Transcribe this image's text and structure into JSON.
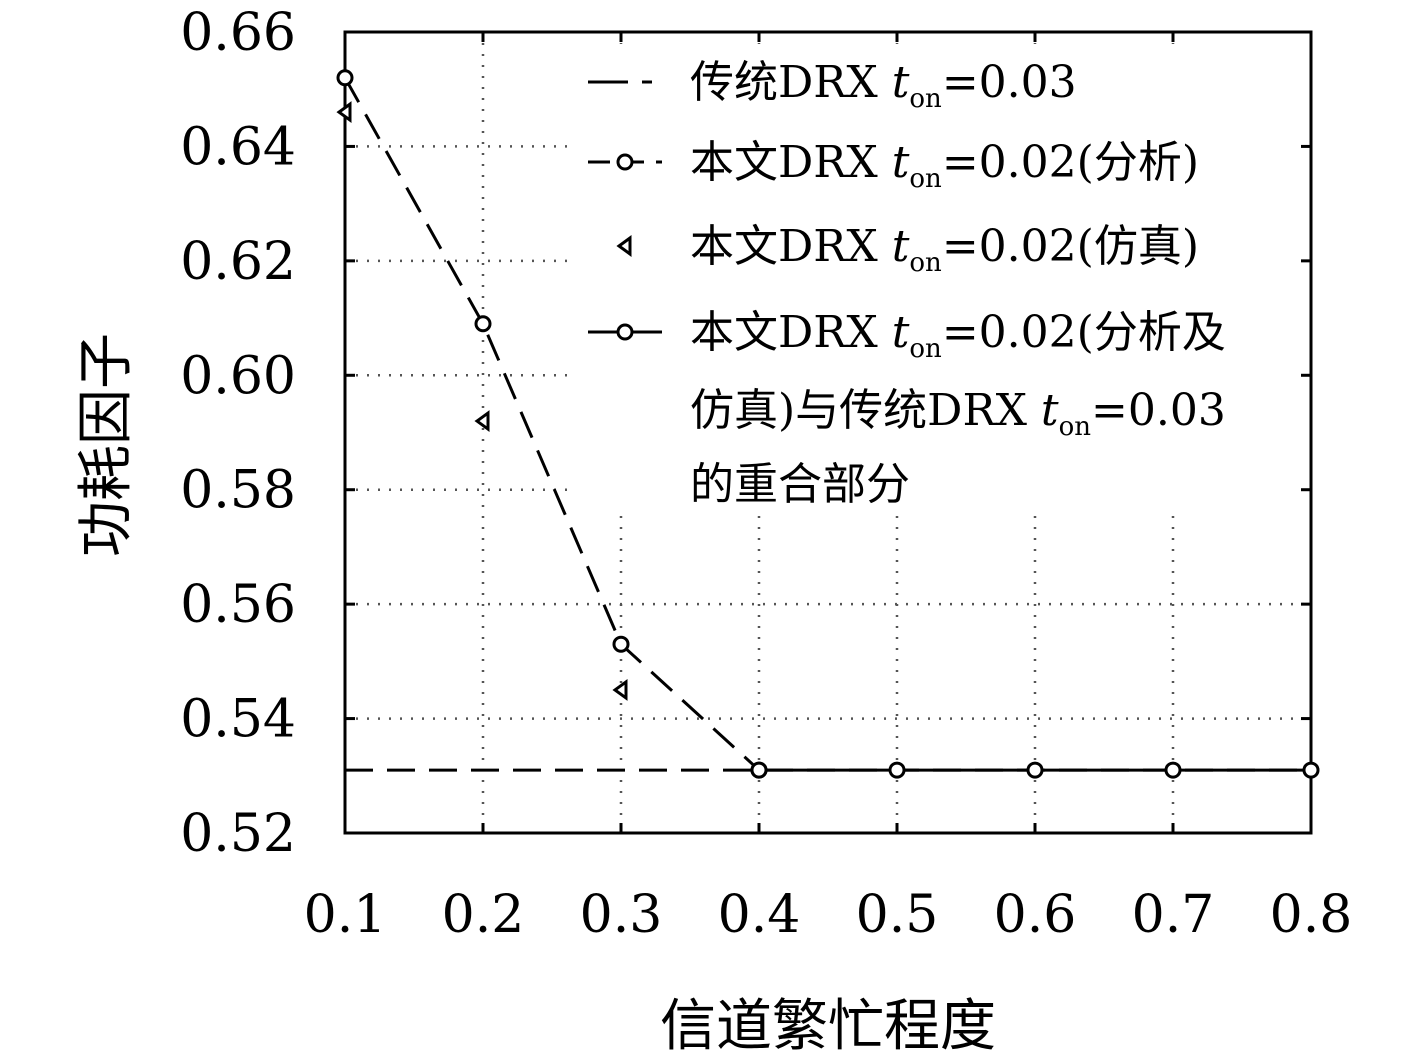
{
  "chart_data": {
    "type": "line",
    "xlabel": "信道繁忙程度",
    "ylabel": "功耗因子",
    "xlim": [
      0.1,
      0.8
    ],
    "ylim": [
      0.52,
      0.66
    ],
    "x_ticks": [
      "0.1",
      "0.2",
      "0.3",
      "0.4",
      "0.5",
      "0.6",
      "0.7",
      "0.8"
    ],
    "y_ticks": [
      "0.52",
      "0.54",
      "0.56",
      "0.58",
      "0.60",
      "0.62",
      "0.64",
      "0.66"
    ],
    "grid": true,
    "legend_position": "top-right",
    "series": [
      {
        "name": "传统DRX t_on=0.03",
        "style": "dashed",
        "x": [
          0.1,
          0.2,
          0.3,
          0.4,
          0.5,
          0.6,
          0.7,
          0.8
        ],
        "values": [
          0.531,
          0.531,
          0.531,
          0.531,
          0.531,
          0.531,
          0.531,
          0.531
        ]
      },
      {
        "name": "本文DRX t_on=0.02(分析)",
        "style": "dashed-circle",
        "x": [
          0.1,
          0.2,
          0.3,
          0.4
        ],
        "values": [
          0.652,
          0.609,
          0.553,
          0.531
        ]
      },
      {
        "name": "本文DRX t_on=0.02(仿真)",
        "style": "triangle-marker",
        "x": [
          0.1,
          0.2,
          0.3
        ],
        "values": [
          0.646,
          0.592,
          0.545
        ]
      },
      {
        "name": "本文DRX t_on=0.02(分析及仿真)与传统DRX t_on=0.03的重合部分",
        "style": "solid-circle",
        "x": [
          0.4,
          0.5,
          0.6,
          0.7,
          0.8
        ],
        "values": [
          0.531,
          0.531,
          0.531,
          0.531,
          0.531
        ]
      }
    ],
    "legend": [
      {
        "prefix": "传统DRX ",
        "t": "t",
        "sub": "on",
        "suffix": "=0.03"
      },
      {
        "prefix": "本文DRX ",
        "t": "t",
        "sub": "on",
        "suffix": "=0.02(分析)"
      },
      {
        "prefix": "本文DRX ",
        "t": "t",
        "sub": "on",
        "suffix": "=0.02(仿真)"
      },
      {
        "prefix": "本文DRX ",
        "t": "t",
        "sub": "on",
        "suffix": "=0.02(分析及"
      },
      {
        "prefix": "仿真)与传统DRX ",
        "t": "t",
        "sub": "on",
        "suffix": "=0.03"
      },
      {
        "prefix": "的重合部分",
        "t": "",
        "sub": "",
        "suffix": ""
      }
    ]
  }
}
